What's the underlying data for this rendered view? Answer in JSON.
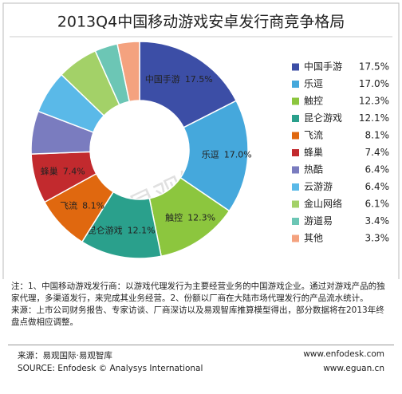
{
  "chart_data": {
    "type": "donut",
    "title": "2013Q4中国移动游戏安卓发行商竞争格局",
    "watermark": "易观智库",
    "categories": [
      "中国手游",
      "乐逗",
      "触控",
      "昆仑游戏",
      "飞流",
      "蜂巢",
      "热酷",
      "云游游",
      "金山网络",
      "游道易",
      "其他"
    ],
    "values": [
      17.5,
      17.0,
      12.3,
      12.1,
      8.1,
      7.4,
      6.4,
      6.4,
      6.1,
      3.4,
      3.3
    ],
    "value_labels": [
      "17.5%",
      "17.0%",
      "12.3%",
      "12.1%",
      "8.1%",
      "7.4%",
      "6.4%",
      "6.4%",
      "6.1%",
      "3.4%",
      "3.3%"
    ],
    "colors": [
      "#3c4ea6",
      "#45a8dc",
      "#8cc63e",
      "#2aa08c",
      "#e0680f",
      "#c22a2e",
      "#7a7cbf",
      "#5ab9e8",
      "#a3d168",
      "#6cc6b5",
      "#f4a27f"
    ],
    "legend": "right"
  },
  "notes": {
    "note": "注：1、中国移动游戏发行商：以游戏代理发行为主要经营业务的中国游戏企业。通过对游戏产品的独家代理，多渠道发行，来完成其业务经营。2、份额以厂商在大陆市场代理发行的产品流水统计。",
    "source": "来源：上市公司财务报告、专家访谈、厂商深访以及易观智库推算模型得出，部分数据将在2013年终盘点做相应调整。"
  },
  "footer": {
    "source_cn": "来源：易观国际·易观智库",
    "url1": "www.enfodesk.com",
    "source_en": "SOURCE: Enfodesk © Analysys International",
    "url2": "www.eguan.cn"
  }
}
